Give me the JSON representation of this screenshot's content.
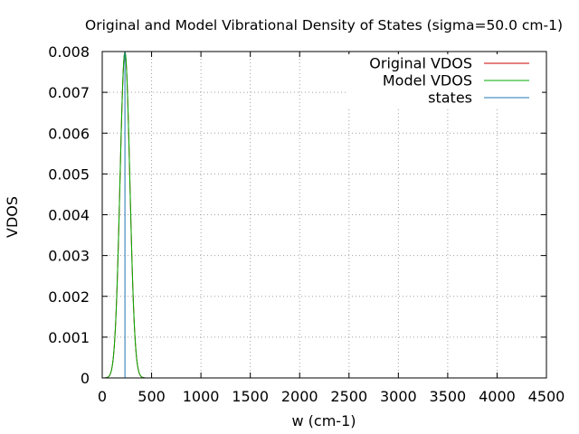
{
  "chart_data": {
    "type": "line",
    "title": "Original and Model Vibrational Density of States (sigma=50.0 cm-1)",
    "xlabel": "w (cm-1)",
    "ylabel": "VDOS",
    "xlim": [
      0,
      4500
    ],
    "ylim": [
      0,
      0.008
    ],
    "x_ticks": [
      0,
      500,
      1000,
      1500,
      2000,
      2500,
      3000,
      3500,
      4000,
      4500
    ],
    "x_tick_labels": [
      "0",
      "500",
      "1000",
      "1500",
      "2000",
      "2500",
      "3000",
      "3500",
      "4000",
      "4500"
    ],
    "y_ticks": [
      0,
      0.001,
      0.002,
      0.003,
      0.004,
      0.005,
      0.006,
      0.007,
      0.008
    ],
    "y_tick_labels": [
      "0",
      "0.001",
      "0.002",
      "0.003",
      "0.004",
      "0.005",
      "0.006",
      "0.007",
      "0.008"
    ],
    "grid": true,
    "grid_style": "dotted",
    "legend_position": "top-right",
    "series": [
      {
        "name": "Original VDOS",
        "kind": "gaussian",
        "color": "#cc0000",
        "center": 230,
        "sigma": 50,
        "peak": 0.00798
      },
      {
        "name": "Model VDOS",
        "kind": "gaussian",
        "color": "#00aa00",
        "center": 230,
        "sigma": 50,
        "peak": 0.00798
      },
      {
        "name": "states",
        "kind": "impulse",
        "color": "#1f77b4",
        "x": [
          230
        ],
        "y": [
          0.008
        ]
      }
    ]
  }
}
